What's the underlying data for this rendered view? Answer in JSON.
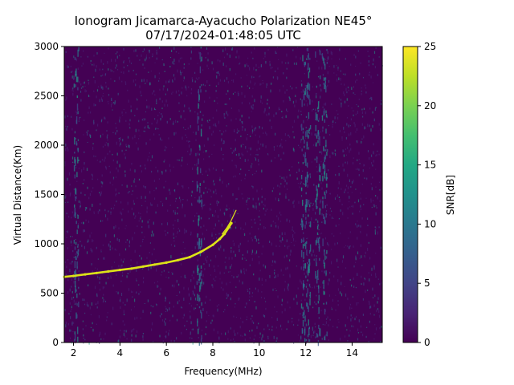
{
  "chart_data": {
    "type": "heatmap",
    "title": [
      "Ionogram Jicamarca-Ayacucho Polarization NE45°",
      "07/17/2024-01:48:05 UTC"
    ],
    "xlabel": "Frequency(MHz)",
    "ylabel": "Virtual Distance(Km)",
    "xlim": [
      1.6,
      15.3
    ],
    "ylim": [
      0,
      3000
    ],
    "x_ticks": [
      2,
      4,
      6,
      8,
      10,
      12,
      14
    ],
    "y_ticks": [
      0,
      500,
      1000,
      1500,
      2000,
      2500,
      3000
    ],
    "colorbar": {
      "label": "SNR[dB]",
      "range": [
        0,
        25
      ],
      "ticks": [
        0,
        5,
        10,
        15,
        20,
        25
      ],
      "colormap": "viridis"
    },
    "background_color": "#440154",
    "noise_colors": [
      "#482878",
      "#3b528b",
      "#31688e",
      "#26828e",
      "#1f9e89"
    ],
    "trace_color": "#dde318",
    "trace": {
      "description": "ionospheric echo trace (high SNR ~25 dB)",
      "x": [
        1.6,
        2.0,
        2.5,
        3.0,
        3.5,
        4.0,
        4.5,
        5.0,
        5.5,
        6.0,
        6.5,
        7.0,
        7.5,
        8.0,
        8.3,
        8.5,
        8.7,
        8.8
      ],
      "y": [
        665,
        675,
        690,
        705,
        720,
        735,
        750,
        770,
        790,
        810,
        835,
        865,
        920,
        990,
        1050,
        1100,
        1170,
        1210
      ]
    },
    "trace_branch": {
      "x": [
        8.4,
        8.6,
        8.8,
        8.9,
        9.0
      ],
      "y": [
        1100,
        1160,
        1240,
        1290,
        1340
      ]
    },
    "noise_bands_mhz": [
      2.1,
      7.4,
      11.9,
      12.1,
      12.5,
      12.8
    ]
  }
}
